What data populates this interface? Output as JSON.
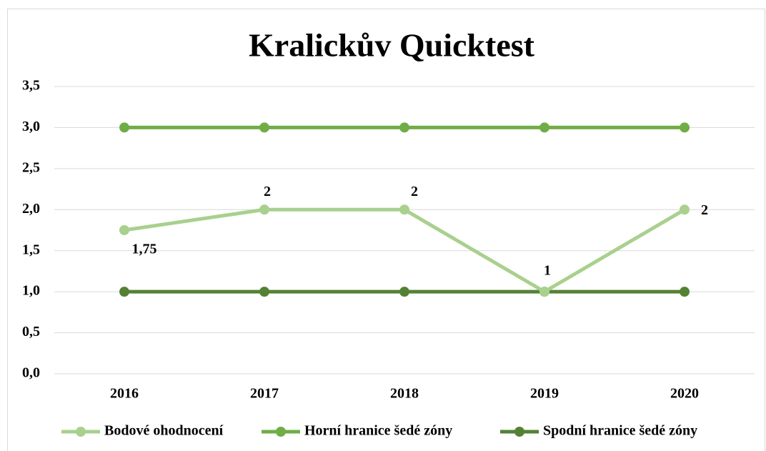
{
  "chart_data": {
    "type": "line",
    "title": "Kralickův Quicktest",
    "categories": [
      "2016",
      "2017",
      "2018",
      "2019",
      "2020"
    ],
    "series": [
      {
        "name": "Bodové ohodnocení",
        "color": "#a9d08e",
        "values": [
          1.75,
          2,
          2,
          1,
          2
        ],
        "value_labels": [
          "1,75",
          "2",
          "2",
          "1",
          "2"
        ]
      },
      {
        "name": "Horní hranice šedé zóny",
        "color": "#70ad47",
        "values": [
          3,
          3,
          3,
          3,
          3
        ]
      },
      {
        "name": "Spodní hranice šedé zóny",
        "color": "#548235",
        "values": [
          1,
          1,
          1,
          1,
          1
        ]
      }
    ],
    "ylim": [
      0,
      3.5
    ],
    "yticks": [
      {
        "value": 0,
        "label": "0,0"
      },
      {
        "value": 0.5,
        "label": "0,5"
      },
      {
        "value": 1,
        "label": "1,0"
      },
      {
        "value": 1.5,
        "label": "1,5"
      },
      {
        "value": 2,
        "label": "2,0"
      },
      {
        "value": 2.5,
        "label": "2,5"
      },
      {
        "value": 3,
        "label": "3,0"
      },
      {
        "value": 3.5,
        "label": "3,5"
      }
    ],
    "grid": true,
    "legend": "bottom"
  }
}
